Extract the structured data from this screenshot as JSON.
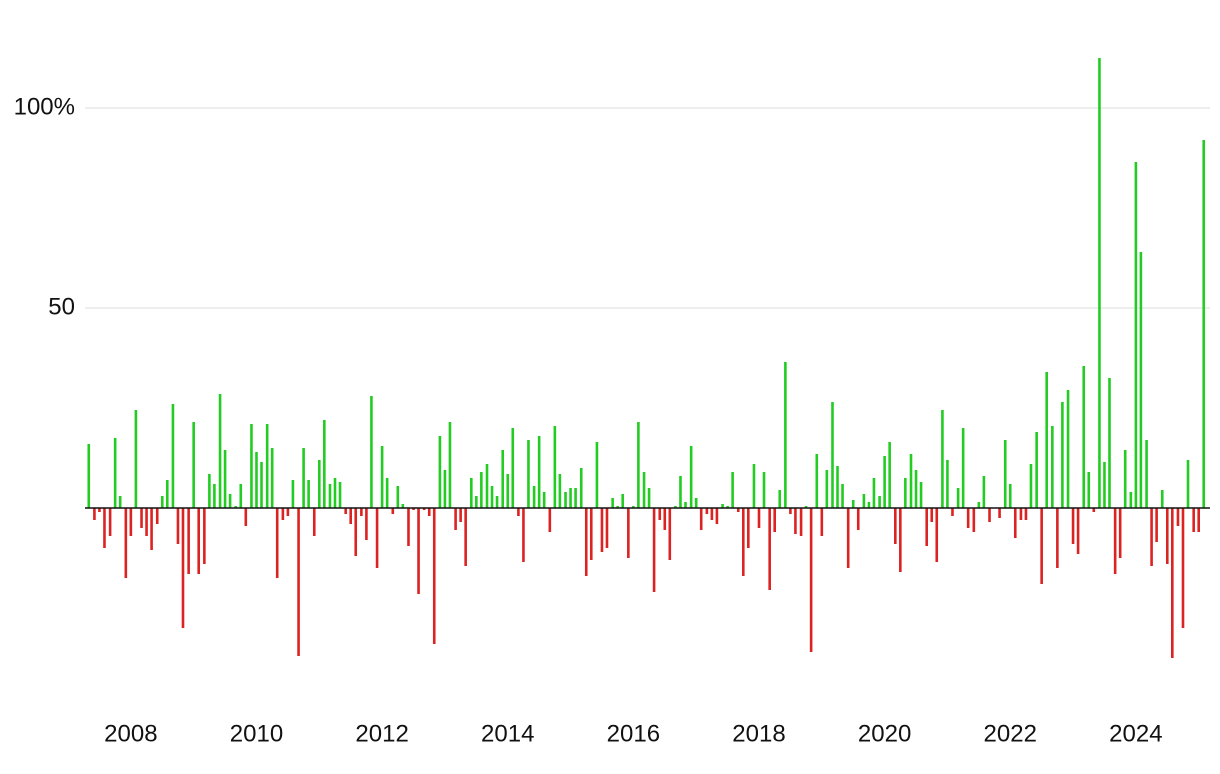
{
  "chart_data": {
    "type": "bar",
    "x": [
      2007.33,
      2007.42,
      2007.5,
      2007.58,
      2007.67,
      2007.75,
      2007.83,
      2007.92,
      2008,
      2008.08,
      2008.17,
      2008.25,
      2008.33,
      2008.42,
      2008.5,
      2008.58,
      2008.67,
      2008.75,
      2008.83,
      2008.92,
      2009,
      2009.08,
      2009.17,
      2009.25,
      2009.33,
      2009.42,
      2009.5,
      2009.58,
      2009.67,
      2009.75,
      2009.83,
      2009.92,
      2010,
      2010.08,
      2010.17,
      2010.25,
      2010.33,
      2010.42,
      2010.5,
      2010.58,
      2010.67,
      2010.75,
      2010.83,
      2010.92,
      2011,
      2011.08,
      2011.17,
      2011.25,
      2011.33,
      2011.42,
      2011.5,
      2011.58,
      2011.67,
      2011.75,
      2011.83,
      2011.92,
      2012,
      2012.08,
      2012.17,
      2012.25,
      2012.33,
      2012.42,
      2012.5,
      2012.58,
      2012.67,
      2012.75,
      2012.83,
      2012.92,
      2013,
      2013.08,
      2013.17,
      2013.25,
      2013.33,
      2013.42,
      2013.5,
      2013.58,
      2013.67,
      2013.75,
      2013.83,
      2013.92,
      2014,
      2014.08,
      2014.17,
      2014.25,
      2014.33,
      2014.42,
      2014.5,
      2014.58,
      2014.67,
      2014.75,
      2014.83,
      2014.92,
      2015,
      2015.08,
      2015.17,
      2015.25,
      2015.33,
      2015.42,
      2015.5,
      2015.58,
      2015.67,
      2015.75,
      2015.83,
      2015.92,
      2016,
      2016.08,
      2016.17,
      2016.25,
      2016.33,
      2016.42,
      2016.5,
      2016.58,
      2016.67,
      2016.75,
      2016.83,
      2016.92,
      2017,
      2017.08,
      2017.17,
      2017.25,
      2017.33,
      2017.42,
      2017.5,
      2017.58,
      2017.67,
      2017.75,
      2017.83,
      2017.92,
      2018,
      2018.08,
      2018.17,
      2018.25,
      2018.33,
      2018.42,
      2018.5,
      2018.58,
      2018.67,
      2018.75,
      2018.83,
      2018.92,
      2019,
      2019.08,
      2019.17,
      2019.25,
      2019.33,
      2019.42,
      2019.5,
      2019.58,
      2019.67,
      2019.75,
      2019.83,
      2019.92,
      2020,
      2020.08,
      2020.17,
      2020.25,
      2020.33,
      2020.42,
      2020.5,
      2020.58,
      2020.67,
      2020.75,
      2020.83,
      2020.92,
      2021,
      2021.08,
      2021.17,
      2021.25,
      2021.33,
      2021.42,
      2021.5,
      2021.58,
      2021.67,
      2021.75,
      2021.83,
      2021.92,
      2022,
      2022.08,
      2022.17,
      2022.25,
      2022.33,
      2022.42,
      2022.5,
      2022.58,
      2022.67,
      2022.75,
      2022.83,
      2022.92,
      2023,
      2023.08,
      2023.17,
      2023.25,
      2023.33,
      2023.42,
      2023.5,
      2023.58,
      2023.67,
      2023.75,
      2023.83,
      2023.92,
      2024,
      2024.08,
      2024.17,
      2024.25,
      2024.33,
      2024.42,
      2024.5,
      2024.58,
      2024.67,
      2024.75,
      2024.83,
      2024.92,
      2025,
      2025.08
    ],
    "values": [
      16,
      -3,
      -1,
      -10,
      -7,
      17.5,
      3,
      -17.5,
      -7,
      24.5,
      -5,
      -7,
      -10.5,
      -4,
      3,
      7,
      26,
      -9,
      -30,
      -16.5,
      21.5,
      -16.5,
      -14,
      8.5,
      6,
      28.5,
      14.5,
      3.5,
      0.5,
      6,
      -4.5,
      21,
      14,
      11.5,
      21,
      15,
      -17.5,
      -3,
      -2,
      7,
      -37,
      15,
      7,
      -7,
      12,
      22,
      6,
      7.5,
      6.5,
      -1.5,
      -4,
      -12,
      -2,
      -8,
      28,
      -15,
      15.5,
      7.5,
      -1.5,
      5.5,
      1,
      -9.5,
      -0.5,
      -21.5,
      -0.5,
      -2,
      -34,
      18,
      9.5,
      21.5,
      -5.5,
      -3.5,
      -14.5,
      7.5,
      3,
      9,
      11,
      5.5,
      3,
      14.5,
      8.5,
      20,
      -2,
      -13.5,
      17,
      5.5,
      18,
      4,
      -6,
      20.5,
      8.5,
      4,
      5,
      5,
      10,
      -17,
      -13,
      16.5,
      -11,
      -10,
      2.5,
      0.5,
      3.5,
      -12.5,
      0.5,
      21.5,
      9,
      5,
      -21,
      -3,
      -5.5,
      -13,
      0.5,
      8,
      1.5,
      15.5,
      2.5,
      -5.5,
      -1.5,
      -3,
      -4,
      1,
      0.5,
      9,
      -1,
      -17,
      -10,
      11,
      -5,
      9,
      -20.5,
      -6,
      4.5,
      36.5,
      -1.5,
      -6.5,
      -7,
      0.5,
      -36,
      13.5,
      -7,
      9.5,
      26.5,
      10.5,
      6,
      -15,
      2,
      -5.5,
      3.5,
      1.5,
      7.5,
      3,
      13,
      16.5,
      -9,
      -16,
      7.5,
      13.5,
      9.5,
      6.5,
      -9.5,
      -3.5,
      -13.5,
      24.5,
      12,
      -2,
      5,
      20,
      -5,
      -6,
      1.5,
      8,
      -3.5,
      0,
      -2.5,
      17,
      6,
      -7.5,
      -3,
      -3,
      11,
      19,
      -19,
      34,
      20.5,
      -15,
      26.5,
      29.5,
      -9,
      -11.5,
      35.5,
      9,
      -1,
      112.5,
      11.5,
      32.5,
      -16.5,
      -12.5,
      14.5,
      4,
      86.5,
      64,
      17,
      -14.5,
      -8.5,
      4.5,
      -14,
      -37.5,
      -4.5,
      -30,
      12,
      -6,
      -6,
      92
    ],
    "positive_color": "#22cc22",
    "negative_color": "#dd2222",
    "xlim": [
      2007.27,
      2025.18
    ],
    "xticks": [
      2008,
      2010,
      2012,
      2014,
      2016,
      2018,
      2020,
      2022,
      2024
    ],
    "ylim": [
      -45,
      117
    ],
    "yticks": [
      50,
      {
        "value": 100,
        "label": "100%"
      }
    ],
    "grid": true
  }
}
